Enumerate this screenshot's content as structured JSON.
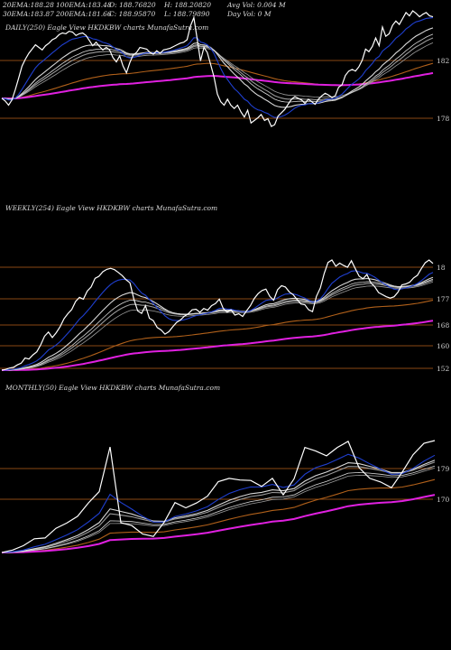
{
  "header": {
    "row1": [
      {
        "label": "20EMA:",
        "value": "188.28"
      },
      {
        "label": "100EMA:",
        "value": "183.48"
      },
      {
        "label": "O:",
        "value": "188.76820"
      },
      {
        "label": "H:",
        "value": "188.20820"
      },
      {
        "label": "Avg Vol:",
        "value": "0.004 M"
      }
    ],
    "row2": [
      {
        "label": "30EMA:",
        "value": "183.87"
      },
      {
        "label": "200EMA:",
        "value": "181.66"
      },
      {
        "label": "C:",
        "value": "188.95870"
      },
      {
        "label": "L:",
        "value": "188.79890"
      },
      {
        "label": "Day Vol:",
        "value": "0  M"
      }
    ]
  },
  "colors": {
    "background": "#000000",
    "price": "#ffffff",
    "ema_blue": "#1f3fd0",
    "ema_white": "#d8d8d8",
    "ema_gray": "#9a9a9a",
    "ema_orange": "#b0601a",
    "ema_magenta": "#e020e0",
    "level_line": "#b8621c"
  },
  "chart_data": [
    {
      "type": "line",
      "title": "DAILY(250) Eagle  View  HKDKBW charts MunafaSutra.com",
      "y_levels": [
        "182",
        "178"
      ],
      "series": [
        {
          "values": [
            181,
            180.7,
            180.2,
            180.8,
            182,
            183.4,
            184.8,
            185.6,
            186.3,
            186.8,
            187.3,
            187,
            186.7,
            187.2,
            187.5,
            187.9,
            188.1,
            188.5,
            188.7,
            188.6,
            188.9,
            188.8,
            188.4,
            188.6,
            188.7,
            188.4,
            187.8,
            187.2,
            187.6,
            187.1,
            186.7,
            187,
            186.7,
            185.8,
            185.3,
            186,
            184.8,
            184,
            185.2,
            186.1,
            186.4,
            187,
            186.9,
            186.8,
            186.4,
            186.2,
            186.6,
            186.3,
            186.7,
            186.8,
            186.9,
            187.1,
            187.3,
            187.5,
            187.6,
            187.9,
            189.5,
            190.5,
            188,
            185.4,
            187,
            186.4,
            185,
            183.5,
            181.5,
            180.6,
            180.2,
            180.9,
            180.2,
            179.8,
            180.2,
            179.4,
            178.8,
            179.6,
            178.1,
            178.4,
            178.7,
            179.1,
            178.4,
            178.6,
            177.7,
            177.9,
            178.9,
            179.3,
            179.7,
            180.3,
            180.9,
            181.2,
            181,
            180.8,
            180.4,
            180.9,
            180.6,
            180.3,
            180.9,
            181.3,
            181.6,
            181.4,
            181.1,
            181.3,
            182.3,
            182.6,
            183.7,
            184.2,
            184.4,
            184.2,
            184.7,
            185.5,
            186.8,
            186.5,
            187.1,
            188.1,
            187.2,
            189.4,
            188.3,
            188.6,
            189.6,
            190.1,
            189.7,
            190.4,
            191.1,
            190.7,
            191.3,
            191,
            190.6,
            190.9,
            191.1,
            190.7,
            190.6
          ]
        }
      ]
    },
    {
      "type": "line",
      "title": "WEEKLY(254) Eagle  View  HKDKBW charts MunafaSutra.com",
      "y_levels": [
        "18",
        "177",
        "168",
        "160",
        "152"
      ],
      "series": [
        {
          "values": [
            151,
            151.2,
            151.6,
            151.8,
            152.5,
            153,
            154.5,
            154.2,
            155.4,
            156.3,
            158.3,
            160.8,
            162,
            160.4,
            161.8,
            163.5,
            165.8,
            167.3,
            168.5,
            170.8,
            172,
            171.5,
            173.8,
            175,
            177.5,
            178.1,
            179.4,
            180.1,
            180.4,
            180,
            179.2,
            178.3,
            177.1,
            176.2,
            171.5,
            168.1,
            167.4,
            169.6,
            166,
            165.3,
            163.3,
            162.6,
            161.4,
            162.1,
            163.5,
            164.8,
            165.5,
            166.6,
            167.3,
            168.4,
            168.6,
            167.7,
            168.8,
            168.3,
            169.6,
            170.2,
            171.5,
            168.8,
            167.7,
            168.4,
            166.9,
            167.3,
            166.5,
            168.1,
            169.6,
            171.7,
            173.1,
            174,
            174.4,
            172.3,
            171.2,
            174.2,
            175.4,
            175,
            173.6,
            172.8,
            171.4,
            170.1,
            169.9,
            168.4,
            167.9,
            172.3,
            174.7,
            178.9,
            182.1,
            182.8,
            181,
            181.9,
            181.2,
            180.7,
            182.6,
            180.3,
            178.1,
            177.4,
            178.6,
            176.2,
            175.1,
            173.4,
            172.8,
            172.2,
            171.8,
            172.2,
            173.5,
            175.6,
            175.9,
            176.4,
            177.6,
            178.4,
            180.3,
            182,
            182.8,
            181.8
          ]
        }
      ]
    },
    {
      "type": "line",
      "title": "MONTHLY(50) Eagle  View  HKDKBW charts MunafaSutra.com",
      "y_levels": [
        "179",
        "170"
      ],
      "series": [
        {
          "values": [
            158.5,
            159.1,
            160.2,
            161.9,
            162.1,
            164.5,
            165.8,
            167.5,
            170.8,
            173.6,
            184.7,
            165.9,
            165.2,
            163.1,
            162.5,
            166,
            170.9,
            169.6,
            170.8,
            172.5,
            176.1,
            176.9,
            176.5,
            176.4,
            174.9,
            176.9,
            172.8,
            176.8,
            184.6,
            183.7,
            182.5,
            184.6,
            186.1,
            179.6,
            176.9,
            176,
            174.6,
            178.5,
            182.8,
            185.6,
            186.3
          ]
        }
      ]
    }
  ]
}
